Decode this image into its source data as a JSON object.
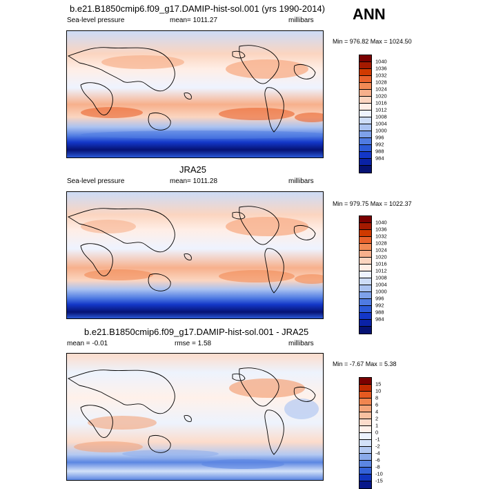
{
  "season": "ANN",
  "panels": [
    {
      "title": "b.e21.B1850cmip6.f09_g17.DAMIP-hist-sol.001 (yrs 1990-2014)",
      "variable": "Sea-level pressure",
      "mean": "mean= 1011.27",
      "rmse": "",
      "units": "millibars",
      "minmax": "Min = 976.82 Max = 1024.50"
    },
    {
      "title": "JRA25",
      "variable": "Sea-level pressure",
      "mean": "mean= 1011.28",
      "rmse": "",
      "units": "millibars",
      "minmax": "Min = 979.75 Max = 1022.37"
    },
    {
      "title": "b.e21.B1850cmip6.f09_g17.DAMIP-hist-sol.001 - JRA25",
      "variable": "",
      "mean": "mean =  -0.01",
      "rmse": "rmse =   1.58",
      "units": "millibars",
      "minmax": "Min =  -7.67 Max =   5.38"
    }
  ],
  "colors": {
    "abs": [
      "#7a0000",
      "#a41a00",
      "#d03a00",
      "#e9622c",
      "#f18a55",
      "#f7b08c",
      "#fbd5c0",
      "#ffeee6",
      "#eef3ff",
      "#cddcf7",
      "#aac2f1",
      "#7ea1ea",
      "#4f7be2",
      "#2c5ad8",
      "#1337c8",
      "#0a22a6",
      "#061273"
    ],
    "diff": [
      "#7a0000",
      "#c02a00",
      "#e55a20",
      "#f08550",
      "#f4a47a",
      "#f8c0a0",
      "#fcdccb",
      "#fff1ea",
      "#edf3fd",
      "#d3e1f8",
      "#b3c9f2",
      "#8aaaea",
      "#5c86e2",
      "#3462d8",
      "#1135bf",
      "#08188a"
    ]
  },
  "chart_data": [
    {
      "type": "heatmap",
      "title": "b.e21.B1850cmip6.f09_g17.DAMIP-hist-sol.001 (yrs 1990-2014)",
      "variable": "Sea-level pressure",
      "units": "millibars",
      "mean": 1011.27,
      "min": 976.82,
      "max": 1024.5,
      "colorbar_levels": [
        "1040",
        "1036",
        "1032",
        "1028",
        "1024",
        "1020",
        "1016",
        "1012",
        "1008",
        "1004",
        "1000",
        "996",
        "992",
        "988",
        "984"
      ]
    },
    {
      "type": "heatmap",
      "title": "JRA25",
      "variable": "Sea-level pressure",
      "units": "millibars",
      "mean": 1011.28,
      "min": 979.75,
      "max": 1022.37,
      "colorbar_levels": [
        "1040",
        "1036",
        "1032",
        "1028",
        "1024",
        "1020",
        "1016",
        "1012",
        "1008",
        "1004",
        "1000",
        "996",
        "992",
        "988",
        "984"
      ]
    },
    {
      "type": "heatmap",
      "title": "b.e21.B1850cmip6.f09_g17.DAMIP-hist-sol.001 - JRA25",
      "units": "millibars",
      "mean": -0.01,
      "rmse": 1.58,
      "min": -7.67,
      "max": 5.38,
      "colorbar_levels": [
        "15",
        "10",
        "8",
        "6",
        "4",
        "2",
        "1",
        "0",
        "-1",
        "-2",
        "-4",
        "-6",
        "-8",
        "-10",
        "-15"
      ]
    }
  ]
}
